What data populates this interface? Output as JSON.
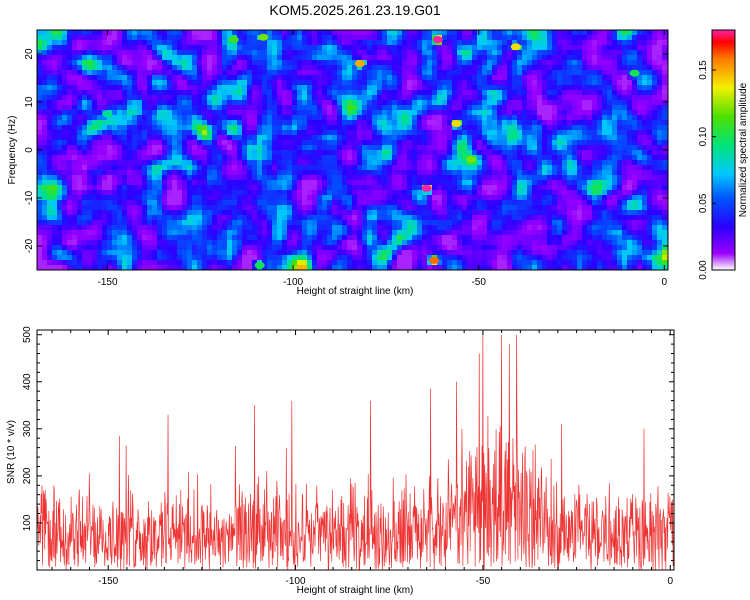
{
  "chart_data": [
    {
      "type": "heatmap",
      "title": "KOM5.2025.261.23.19.G01",
      "xlabel": "Height of straight line (km)",
      "ylabel": "Frequency (Hz)",
      "xlim": [
        -169,
        1
      ],
      "ylim": [
        -25,
        25
      ],
      "x_ticks": [
        -150,
        -100,
        -50,
        0
      ],
      "y_ticks": [
        -20,
        -10,
        0,
        10,
        20
      ],
      "colorbar": {
        "label": "Normalized spectral amplitude",
        "range": [
          0.0,
          0.18
        ],
        "ticks": [
          "0.00",
          "0.05",
          "0.10",
          "0.15"
        ],
        "tick_values": [
          0.0,
          0.05,
          0.1,
          0.15
        ]
      },
      "hotspots": [
        {
          "x": -61,
          "y": 23,
          "v": 0.18
        },
        {
          "x": -64,
          "y": -8,
          "v": 0.18
        },
        {
          "x": -62,
          "y": -23,
          "v": 0.16
        },
        {
          "x": -56,
          "y": 5.5,
          "v": 0.14
        },
        {
          "x": -82,
          "y": 18,
          "v": 0.15
        },
        {
          "x": -40,
          "y": 21.5,
          "v": 0.14
        },
        {
          "x": -52,
          "y": -2,
          "v": 0.12
        },
        {
          "x": -108,
          "y": 23.5,
          "v": 0.12
        },
        {
          "x": -116,
          "y": 23,
          "v": 0.11
        },
        {
          "x": -8,
          "y": 16,
          "v": 0.1
        },
        {
          "x": -150,
          "y": 7.5,
          "v": 0.09
        },
        {
          "x": -109,
          "y": -24,
          "v": 0.1
        }
      ]
    },
    {
      "type": "line",
      "xlabel": "Height of straight line (km)",
      "ylabel": "SNR (10 * v/v)",
      "xlim": [
        -169,
        1
      ],
      "ylim": [
        0,
        510
      ],
      "x_ticks": [
        -150,
        -100,
        -50,
        0
      ],
      "y_ticks": [
        100,
        200,
        300,
        400,
        500
      ],
      "color": "#ee3333",
      "series": [
        {
          "x_range": [
            -169,
            1
          ],
          "baseline": 95,
          "peaks": [
            {
              "x": -50,
              "y": 505
            },
            {
              "x": -45,
              "y": 500
            },
            {
              "x": -41,
              "y": 500
            },
            {
              "x": -43,
              "y": 480
            },
            {
              "x": -57,
              "y": 400
            },
            {
              "x": -64,
              "y": 385
            },
            {
              "x": -51,
              "y": 460
            },
            {
              "x": -80,
              "y": 360
            },
            {
              "x": -101,
              "y": 360
            },
            {
              "x": -111,
              "y": 350
            },
            {
              "x": -134,
              "y": 330
            },
            {
              "x": -147,
              "y": 285
            },
            {
              "x": -7,
              "y": 300
            },
            {
              "x": -29,
              "y": 310
            }
          ]
        }
      ]
    }
  ]
}
